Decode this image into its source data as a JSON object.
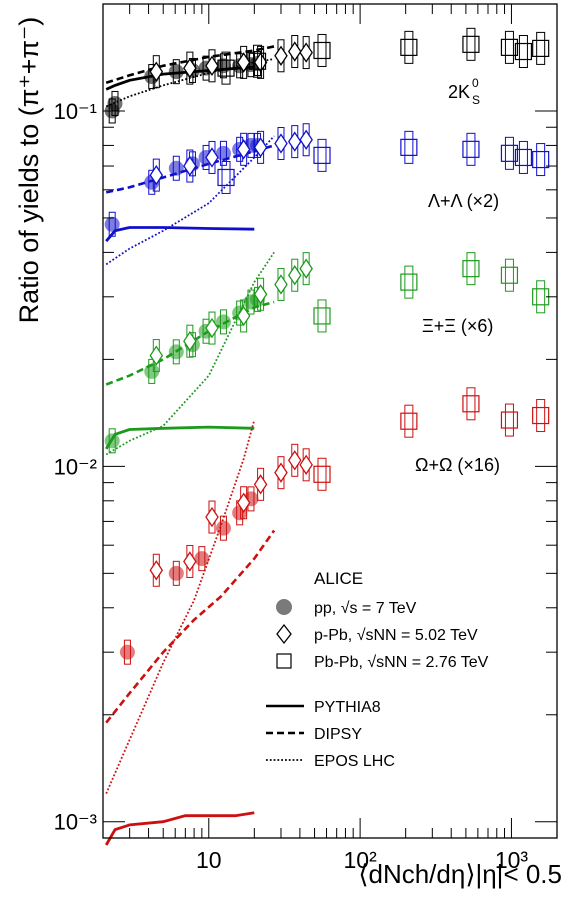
{
  "chart_data": {
    "type": "scatter",
    "xlabel": "⟨dNch/dη⟩|η|< 0.5",
    "ylabel": "Ratio of yields to (π⁺+π⁻)",
    "x_scale": "log",
    "y_scale": "log",
    "xlim": [
      2,
      2000
    ],
    "ylim": [
      0.0009,
      0.2
    ],
    "x_ticks": [
      10,
      100,
      1000
    ],
    "x_tick_labels": [
      "10",
      "10²",
      "10³"
    ],
    "y_ticks": [
      0.001,
      0.01,
      0.1
    ],
    "y_tick_labels": [
      "10⁻³",
      "10⁻²",
      "10⁻¹"
    ],
    "legend": {
      "title": "ALICE",
      "placement": "bottom-right",
      "entries": [
        {
          "marker": "circle",
          "label": "pp, √s = 7 TeV"
        },
        {
          "marker": "diamond",
          "label": "p-Pb, √sNN = 5.02 TeV"
        },
        {
          "marker": "square",
          "label": "Pb-Pb, √sNN = 2.76 TeV"
        }
      ],
      "lines": [
        {
          "style": "solid",
          "label": "PYTHIA8"
        },
        {
          "style": "dashed",
          "label": "DIPSY"
        },
        {
          "style": "dotted",
          "label": "EPOS LHC"
        }
      ]
    },
    "species": [
      {
        "name": "2K0S",
        "label": "2K",
        "label_sup": "0",
        "label_sub": "S",
        "color": "#000000",
        "pp": [
          [
            2.3,
            0.1
          ],
          [
            2.4,
            0.105
          ],
          [
            4.2,
            0.125
          ],
          [
            6.1,
            0.129
          ],
          [
            7.8,
            0.13
          ],
          [
            9.6,
            0.132
          ],
          [
            12.5,
            0.134
          ],
          [
            16,
            0.134
          ],
          [
            19,
            0.135
          ],
          [
            21,
            0.136
          ]
        ],
        "pPb": [
          [
            4.5,
            0.129
          ],
          [
            7.5,
            0.132
          ],
          [
            10.5,
            0.134
          ],
          [
            17,
            0.137
          ],
          [
            22,
            0.137
          ],
          [
            30,
            0.143
          ],
          [
            37,
            0.147
          ],
          [
            44,
            0.146
          ]
        ],
        "PbPb": [
          [
            13,
            0.132
          ],
          [
            21,
            0.138
          ],
          [
            56,
            0.148
          ],
          [
            210,
            0.151
          ],
          [
            540,
            0.154
          ],
          [
            970,
            0.151
          ],
          [
            1200,
            0.147
          ],
          [
            1560,
            0.15
          ]
        ],
        "pythia": [
          [
            2.1,
            0.115
          ],
          [
            2.4,
            0.118
          ],
          [
            3,
            0.122
          ],
          [
            5,
            0.127
          ],
          [
            10,
            0.13
          ],
          [
            20,
            0.133
          ]
        ],
        "dipsy": [
          [
            2.1,
            0.12
          ],
          [
            3,
            0.126
          ],
          [
            5,
            0.134
          ],
          [
            10,
            0.142
          ],
          [
            20,
            0.148
          ],
          [
            27,
            0.152
          ]
        ],
        "epos": [
          [
            2.1,
            0.103
          ],
          [
            3,
            0.11
          ],
          [
            5,
            0.118
          ],
          [
            10,
            0.128
          ],
          [
            20,
            0.137
          ],
          [
            27,
            0.14
          ]
        ]
      },
      {
        "name": "Λ+Λ̄ (×2)",
        "label": "Λ+Λ (×2)",
        "color": "#1010cc",
        "pp": [
          [
            2.3,
            0.048
          ],
          [
            4.2,
            0.063
          ],
          [
            6.1,
            0.069
          ],
          [
            7.8,
            0.071
          ],
          [
            9.6,
            0.074
          ],
          [
            12.5,
            0.076
          ],
          [
            16,
            0.078
          ],
          [
            19,
            0.08
          ],
          [
            21,
            0.08
          ]
        ],
        "pPb": [
          [
            4.5,
            0.066
          ],
          [
            7.5,
            0.07
          ],
          [
            10.5,
            0.074
          ],
          [
            17,
            0.078
          ],
          [
            22,
            0.079
          ],
          [
            30,
            0.081
          ],
          [
            37,
            0.082
          ],
          [
            44,
            0.083
          ]
        ],
        "PbPb": [
          [
            13,
            0.065
          ],
          [
            56,
            0.075
          ],
          [
            210,
            0.079
          ],
          [
            540,
            0.078
          ],
          [
            970,
            0.076
          ],
          [
            1200,
            0.074
          ],
          [
            1560,
            0.073
          ]
        ],
        "pythia": [
          [
            2.1,
            0.043
          ],
          [
            2.4,
            0.046
          ],
          [
            3,
            0.047
          ],
          [
            5,
            0.047
          ],
          [
            10,
            0.0467
          ],
          [
            20,
            0.0465
          ]
        ],
        "dipsy": [
          [
            2.1,
            0.059
          ],
          [
            3,
            0.061
          ],
          [
            5,
            0.065
          ],
          [
            10,
            0.071
          ],
          [
            20,
            0.077
          ],
          [
            27,
            0.08
          ]
        ],
        "epos": [
          [
            2.1,
            0.037
          ],
          [
            3,
            0.041
          ],
          [
            5,
            0.046
          ],
          [
            10,
            0.055
          ],
          [
            20,
            0.074
          ],
          [
            27,
            0.085
          ]
        ]
      },
      {
        "name": "Ξ⁻+Ξ̄⁺ (×6)",
        "label": "Ξ+Ξ (×6)",
        "color": "#1c9a1c",
        "pp": [
          [
            2.3,
            0.0118
          ],
          [
            4.2,
            0.0185
          ],
          [
            6.1,
            0.021
          ],
          [
            7.8,
            0.022
          ],
          [
            9.6,
            0.024
          ],
          [
            12.5,
            0.0255
          ],
          [
            16,
            0.027
          ],
          [
            19,
            0.029
          ],
          [
            21,
            0.0295
          ]
        ],
        "pPb": [
          [
            4.5,
            0.0205
          ],
          [
            7.5,
            0.0225
          ],
          [
            10.5,
            0.0245
          ],
          [
            17,
            0.0265
          ],
          [
            22,
            0.0305
          ],
          [
            30,
            0.0325
          ],
          [
            37,
            0.0345
          ],
          [
            44,
            0.036
          ]
        ],
        "PbPb": [
          [
            56,
            0.0265
          ],
          [
            210,
            0.033
          ],
          [
            540,
            0.036
          ],
          [
            970,
            0.0345
          ],
          [
            1560,
            0.03
          ]
        ],
        "pythia": [
          [
            2.1,
            0.0112
          ],
          [
            2.4,
            0.0123
          ],
          [
            3,
            0.0127
          ],
          [
            5,
            0.0128
          ],
          [
            10,
            0.0129
          ],
          [
            20,
            0.0128
          ]
        ],
        "dipsy": [
          [
            2.1,
            0.017
          ],
          [
            3,
            0.018
          ],
          [
            5,
            0.02
          ],
          [
            10,
            0.024
          ],
          [
            20,
            0.028
          ],
          [
            27,
            0.029
          ]
        ],
        "epos": [
          [
            2.1,
            0.0108
          ],
          [
            3,
            0.0118
          ],
          [
            5,
            0.013
          ],
          [
            10,
            0.018
          ],
          [
            20,
            0.033
          ],
          [
            27,
            0.04
          ]
        ]
      },
      {
        "name": "Ω⁻+Ω̄⁺ (×16)",
        "label": "Ω+Ω (×16)",
        "color": "#cc1010",
        "pp": [
          [
            2.9,
            0.003
          ],
          [
            6.1,
            0.005
          ],
          [
            9,
            0.0055
          ],
          [
            12.5,
            0.0067
          ],
          [
            16,
            0.0074
          ],
          [
            19,
            0.0081
          ]
        ],
        "pPb": [
          [
            4.5,
            0.0051
          ],
          [
            7.5,
            0.0054
          ],
          [
            10.5,
            0.0072
          ],
          [
            17,
            0.0079
          ],
          [
            22,
            0.0089
          ],
          [
            30,
            0.0096
          ],
          [
            37,
            0.0104
          ],
          [
            44,
            0.0101
          ]
        ],
        "PbPb": [
          [
            56,
            0.0095
          ],
          [
            210,
            0.0134
          ],
          [
            540,
            0.015
          ],
          [
            970,
            0.0135
          ],
          [
            1560,
            0.0139
          ]
        ],
        "pythia": [
          [
            2.1,
            0.00086
          ],
          [
            2.4,
            0.00095
          ],
          [
            3,
            0.00098
          ],
          [
            5,
            0.001
          ],
          [
            7,
            0.00104
          ],
          [
            10,
            0.00104
          ],
          [
            15,
            0.00104
          ],
          [
            20,
            0.00106
          ]
        ],
        "dipsy": [
          [
            2.1,
            0.0019
          ],
          [
            3,
            0.0023
          ],
          [
            5,
            0.003
          ],
          [
            8,
            0.0037
          ],
          [
            12,
            0.0043
          ],
          [
            20,
            0.0055
          ],
          [
            27,
            0.0066
          ]
        ],
        "epos": [
          [
            2.1,
            0.0012
          ],
          [
            3,
            0.0017
          ],
          [
            5,
            0.0028
          ],
          [
            8,
            0.0042
          ],
          [
            12,
            0.0068
          ],
          [
            17,
            0.0105
          ],
          [
            20,
            0.0135
          ]
        ]
      }
    ]
  }
}
